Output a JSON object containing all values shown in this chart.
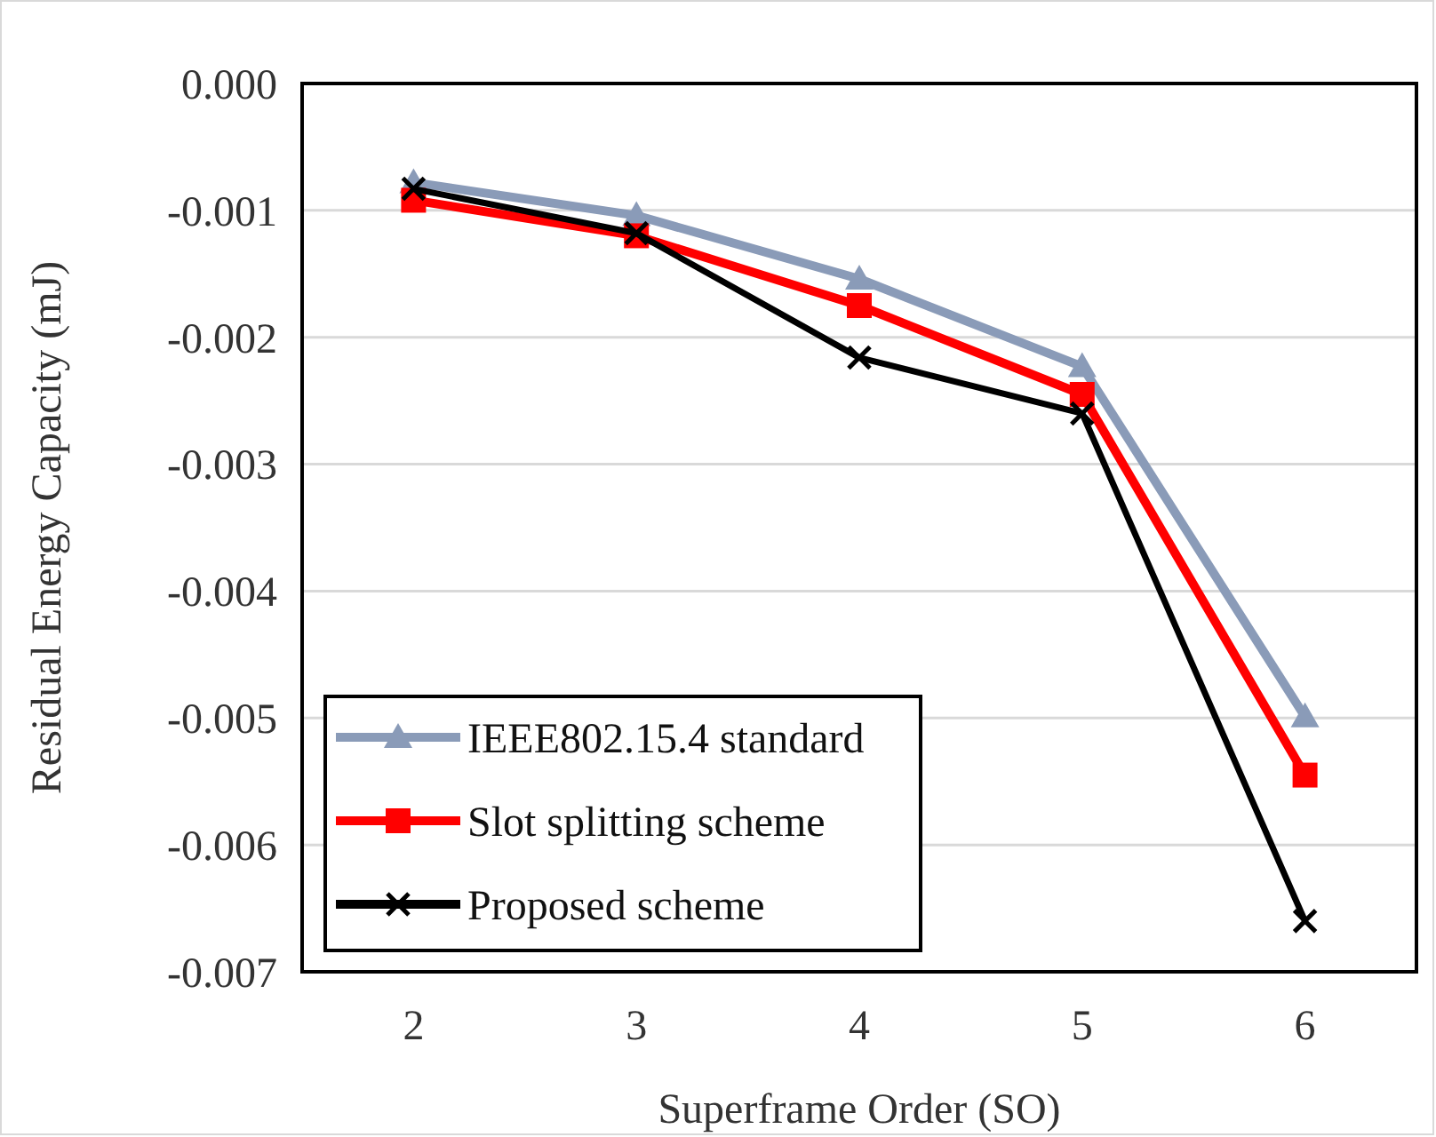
{
  "chart_data": {
    "type": "line",
    "xlabel": "Superframe Order (SO)",
    "ylabel": "Residual Energy Capacity (mJ)",
    "categories": [
      "2",
      "3",
      "4",
      "5",
      "6"
    ],
    "ylim": [
      -0.007,
      0
    ],
    "yticks": [
      {
        "value": 0,
        "label": "0.000"
      },
      -0.001,
      -0.002,
      -0.003,
      -0.004,
      -0.005,
      -0.006,
      -0.007
    ],
    "grid": "y",
    "legend": "bottom left",
    "line_style": "solid",
    "series": [
      {
        "name": "IEEE802.15.4 standard",
        "color": "#8a9bb8",
        "marker": "triangle",
        "values": [
          -0.00078,
          -0.00104,
          -0.00154,
          -0.00223,
          -0.00499
        ]
      },
      {
        "name": "Slot splitting scheme",
        "color": "#ff0000",
        "marker": "square",
        "values": [
          -0.00092,
          -0.0012,
          -0.00175,
          -0.00245,
          -0.00545
        ]
      },
      {
        "name": "Proposed scheme",
        "color": "#000000",
        "marker": "cross",
        "values": [
          -0.00083,
          -0.00118,
          -0.00216,
          -0.0026,
          -0.0066
        ]
      }
    ]
  }
}
